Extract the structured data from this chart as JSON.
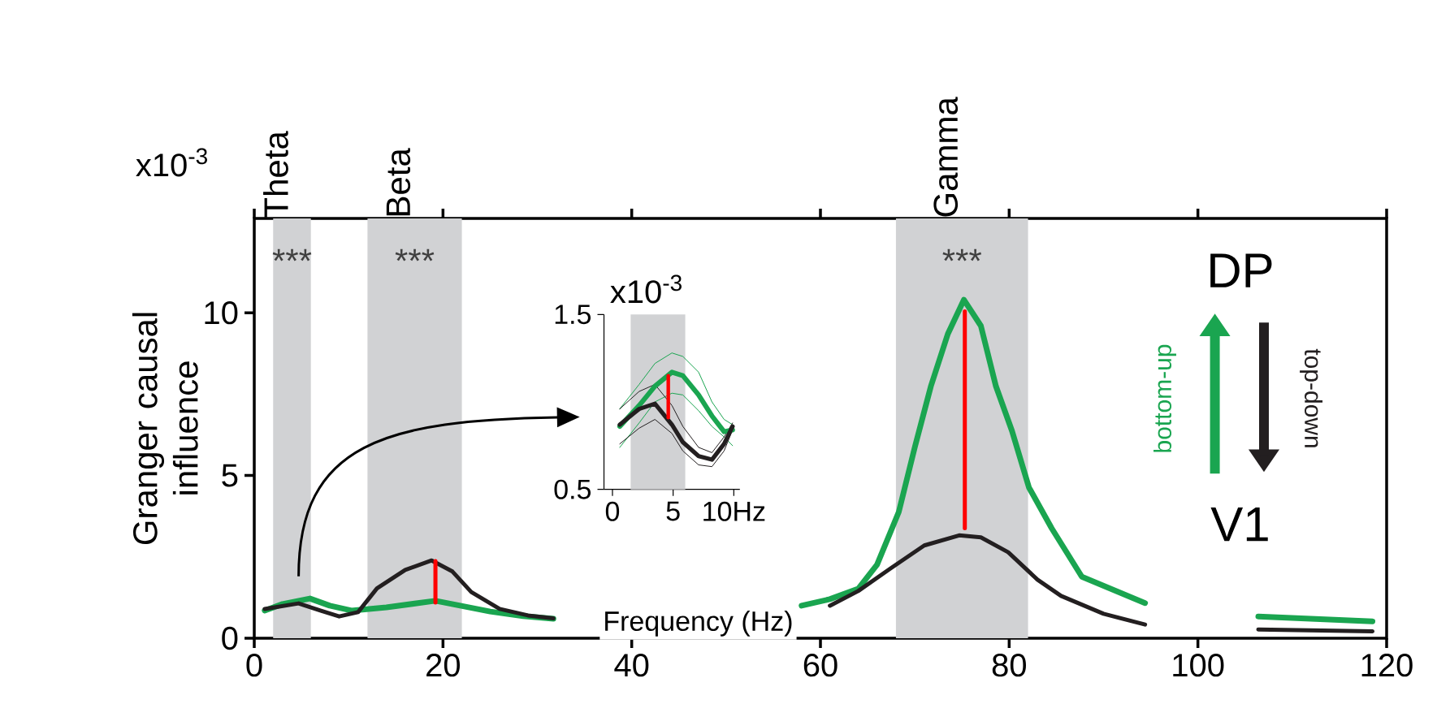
{
  "chart_data": [
    {
      "type": "line",
      "xlabel": "Frequency (Hz)",
      "ylabel": "Granger causal influence",
      "xlim": [
        0,
        120
      ],
      "ylim": [
        0,
        12.9
      ],
      "xticks": [
        0,
        20,
        40,
        60,
        80,
        100,
        120
      ],
      "yticks": [
        0,
        5,
        10
      ],
      "bands": [
        {
          "axis": "x",
          "from": 2,
          "to": 6,
          "label": "Theta",
          "color": "#d1d2d4"
        },
        {
          "axis": "x",
          "from": 12,
          "to": 22,
          "label": "Beta",
          "color": "#d1d2d4"
        },
        {
          "axis": "x",
          "from": 68,
          "to": 82,
          "label": "Gamma",
          "color": "#d1d2d4"
        }
      ],
      "annotations": [
        "***",
        "***",
        "***",
        "x10$^{-3}$",
        "DP",
        "V1"
      ],
      "series": [
        {
          "name": "bottom-up",
          "color": "#1aa550",
          "x": [
            1.1,
            3,
            5.9,
            8,
            10.3,
            14,
            19.2,
            25,
            28.5,
            31.7,
            45,
            58,
            61,
            64,
            66,
            68.3,
            70,
            71.7,
            73.5,
            75.2,
            77,
            78.6,
            80.3,
            82.1,
            84.5,
            87.7,
            94.4,
            100,
            106.4,
            118.5
          ],
          "values": [
            0.85,
            1.05,
            1.22,
            1.0,
            0.85,
            0.95,
            1.15,
            0.82,
            0.68,
            0.6,
            null,
            1.0,
            1.2,
            1.52,
            2.26,
            3.88,
            5.87,
            7.74,
            9.35,
            10.4,
            9.6,
            7.74,
            6.37,
            4.63,
            3.38,
            1.89,
            1.08,
            null,
            0.67,
            0.52
          ]
        },
        {
          "name": "top-down",
          "color": "#231f20",
          "x": [
            1.1,
            4.7,
            7,
            9,
            11,
            13,
            16,
            18.8,
            21,
            23,
            26,
            29,
            31.7,
            45,
            61,
            64,
            67.4,
            71,
            74.7,
            77,
            79.9,
            83,
            85.5,
            90,
            94.4,
            100,
            106.4,
            118.5
          ],
          "values": [
            0.9,
            1.07,
            0.85,
            0.67,
            0.8,
            1.53,
            2.1,
            2.39,
            2.05,
            1.42,
            0.9,
            0.7,
            0.61,
            null,
            1.0,
            1.45,
            2.14,
            2.85,
            3.16,
            3.1,
            2.64,
            1.8,
            1.3,
            0.75,
            0.42,
            null,
            0.27,
            0.21
          ]
        },
        {
          "color": "#ff0000",
          "x": [
            19.2,
            19.2
          ],
          "values": [
            1.1,
            2.37
          ]
        },
        {
          "color": "#ff0000",
          "x": [
            75.3,
            75.3
          ],
          "values": [
            3.38,
            10.04
          ]
        }
      ]
    },
    {
      "type": "line",
      "xlim": [
        -0.7,
        10.5
      ],
      "ylim": [
        0.5,
        1.5
      ],
      "xticks": [
        0,
        5,
        {
          "value": 10,
          "label": "10Hz"
        }
      ],
      "yticks": [
        0.5,
        1.5
      ],
      "bands": [
        {
          "axis": "x",
          "from": 1.5,
          "to": 6,
          "color": "#d1d2d4"
        }
      ],
      "annotations": [
        "x10$^{-3}$"
      ],
      "series": [
        {
          "color": "#1aa550",
          "x": [
            0.6,
            2.2,
            3.5,
            4.9,
            5.8,
            7.1,
            8.2,
            9.2,
            9.9
          ],
          "values": [
            0.96,
            1.1,
            1.22,
            1.28,
            1.26,
            1.17,
            1.0,
            0.9,
            0.87
          ]
        },
        {
          "color": "#1aa550",
          "x": [
            0.6,
            2.2,
            3.5,
            4.9,
            5.8,
            7.1,
            8.2,
            9.2,
            9.9
          ],
          "values": [
            0.74,
            0.88,
            1.0,
            1.05,
            1.04,
            0.95,
            0.86,
            0.8,
            0.75
          ]
        },
        {
          "color": "#231f20",
          "x": [
            0.6,
            2.2,
            3.5,
            4.9,
            5.8,
            7.1,
            8.2,
            9.2,
            9.9
          ],
          "values": [
            0.96,
            1.06,
            1.1,
            0.98,
            0.86,
            0.74,
            0.71,
            0.8,
            0.88
          ]
        },
        {
          "color": "#231f20",
          "x": [
            0.6,
            2.2,
            3.5,
            4.9,
            5.8,
            7.1,
            8.2,
            9.2,
            9.9
          ],
          "values": [
            0.76,
            0.85,
            0.9,
            0.82,
            0.72,
            0.64,
            0.63,
            0.72,
            0.84
          ]
        },
        {
          "color": "#1aa550",
          "x": [
            0.6,
            2.2,
            3.5,
            4.9,
            5.8,
            7.1,
            8.2,
            9.2,
            9.9
          ],
          "values": [
            0.86,
            0.98,
            1.09,
            1.17,
            1.15,
            1.04,
            0.92,
            0.83,
            0.84
          ]
        },
        {
          "color": "#231f20",
          "x": [
            0.6,
            2.2,
            3.5,
            4.9,
            5.8,
            7.1,
            8.2,
            9.2,
            9.9
          ],
          "values": [
            0.87,
            0.96,
            0.99,
            0.87,
            0.77,
            0.69,
            0.67,
            0.76,
            0.86
          ]
        },
        {
          "color": "#ff0000",
          "x": [
            4.6,
            4.6
          ],
          "values": [
            0.91,
            1.15
          ]
        }
      ]
    }
  ]
}
